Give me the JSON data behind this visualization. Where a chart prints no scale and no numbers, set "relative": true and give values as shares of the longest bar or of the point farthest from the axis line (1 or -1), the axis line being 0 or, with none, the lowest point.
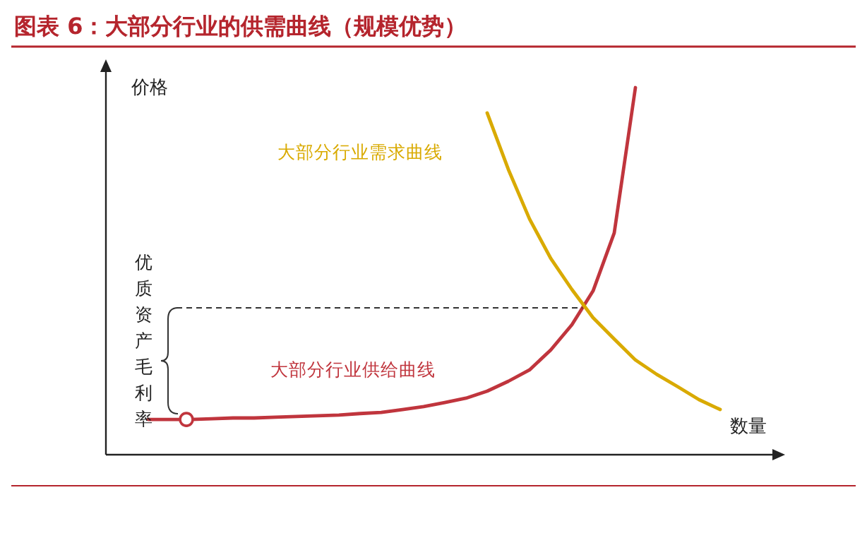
{
  "chart_data": {
    "type": "line",
    "title": "图表 6：大部分行业的供需曲线（规模优势）",
    "ylabel": "价格",
    "xlabel": "数量",
    "relative": true,
    "marker": "none",
    "line_style": "solid",
    "categories": [
      null,
      null,
      null,
      null,
      null,
      null,
      null,
      null,
      null,
      null,
      null,
      null,
      null,
      null,
      null,
      null,
      null,
      null,
      null,
      null,
      null,
      null,
      null,
      null,
      null,
      null,
      null,
      null,
      null
    ],
    "series": [
      {
        "name": "大部分行业供给曲线",
        "color": "#c0353d",
        "values": [
          0.096,
          0.096,
          0.096,
          0.098,
          0.1,
          0.1,
          0.102,
          0.104,
          0.106,
          0.108,
          0.112,
          0.115,
          0.123,
          0.131,
          0.142,
          0.154,
          0.173,
          0.2,
          0.231,
          0.285,
          0.354,
          0.446,
          0.604,
          1.0,
          null,
          null,
          null,
          null,
          null
        ]
      },
      {
        "name": "大部分行业需求曲线",
        "color": "#d9aa00",
        "values": [
          null,
          null,
          null,
          null,
          null,
          null,
          null,
          null,
          null,
          null,
          null,
          null,
          null,
          null,
          null,
          null,
          0.931,
          0.777,
          0.642,
          0.535,
          0.45,
          0.373,
          0.315,
          0.258,
          0.219,
          0.185,
          0.15,
          0.123,
          null
        ]
      }
    ],
    "ref_lines": [
      {
        "axis": "y",
        "value": 0.4,
        "label": "优质资产毛利率",
        "line_style": "dashed",
        "color": "#333333"
      }
    ]
  }
}
